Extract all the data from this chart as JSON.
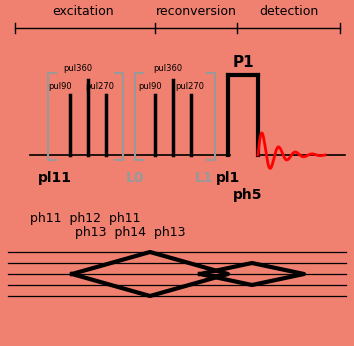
{
  "bg_color": "#F08070",
  "title_labels": [
    "excitation",
    "reconversion",
    "detection"
  ],
  "ph_labels_row1": "ph11  ph12  ph11",
  "ph_labels_row2": "ph13  ph14  ph13",
  "ph5_label": "ph5",
  "P1_label": "P1",
  "figsize": [
    3.54,
    3.46
  ],
  "dpi": 100
}
